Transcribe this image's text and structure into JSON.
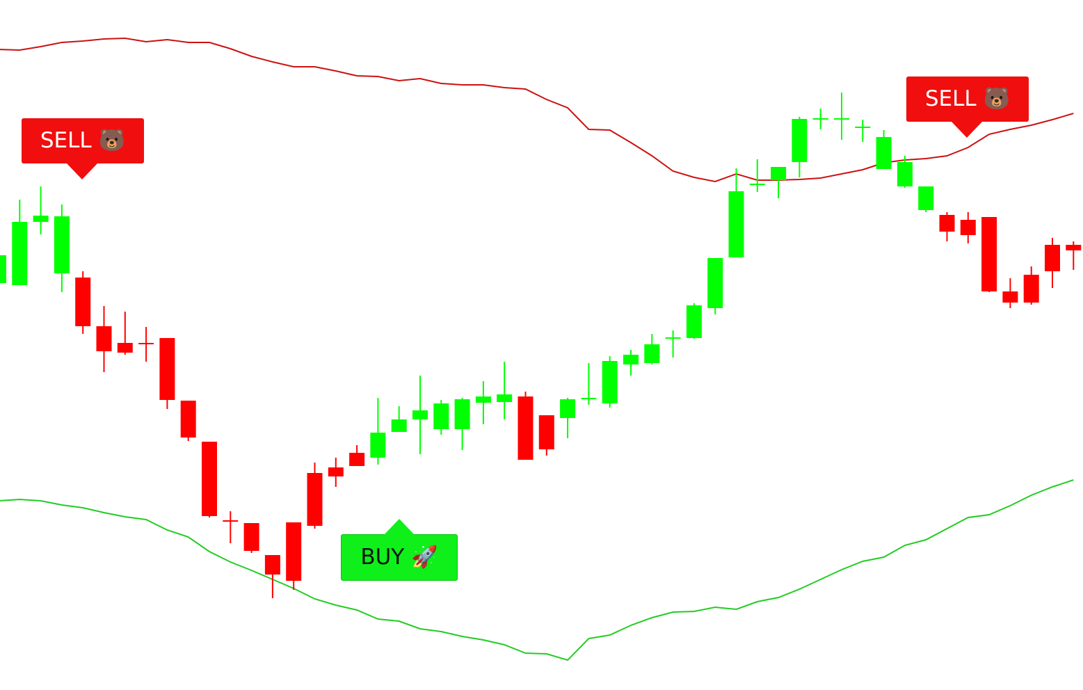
{
  "chart_data": {
    "type": "candlestick",
    "ylim": [
      0,
      992
    ],
    "up_color": "#00ff00",
    "down_color": "#ff0000",
    "open": [
      585,
      582,
      673,
      599,
      593,
      523,
      499,
      499,
      506,
      416,
      357,
      244,
      240,
      194,
      241,
      312,
      320,
      341,
      334,
      371,
      389,
      375,
      375,
      413,
      414,
      422,
      395,
      391,
      418,
      412,
      468,
      470,
      505,
      506,
      549,
      622,
      726,
      733,
      759,
      820,
      820,
      808,
      749,
      724,
      690,
      683,
      676,
      680,
      573,
      597,
      640,
      640
    ],
    "high": [
      632,
      705,
      724,
      698,
      602,
      552,
      544,
      522,
      506,
      416,
      357,
      257,
      240,
      194,
      241,
      327,
      334,
      352,
      420,
      408,
      452,
      417,
      420,
      444,
      472,
      429,
      395,
      420,
      470,
      480,
      489,
      512,
      517,
      556,
      621,
      750,
      763,
      752,
      824,
      836,
      859,
      820,
      805,
      768,
      724,
      687,
      687,
      680,
      592,
      609,
      650,
      645
    ],
    "low": [
      582,
      582,
      655,
      572,
      512,
      457,
      482,
      472,
      404,
      358,
      248,
      211,
      197,
      132,
      144,
      232,
      292,
      322,
      324,
      371,
      339,
      367,
      345,
      382,
      389,
      331,
      337,
      362,
      410,
      406,
      452,
      468,
      478,
      505,
      540,
      622,
      716,
      707,
      737,
      806,
      791,
      788,
      749,
      722,
      687,
      645,
      642,
      572,
      549,
      554,
      578,
      604
    ],
    "close": [
      625,
      673,
      682,
      681,
      523,
      487,
      485,
      497,
      417,
      363,
      250,
      242,
      200,
      166,
      157,
      236,
      307,
      322,
      370,
      389,
      402,
      412,
      418,
      422,
      425,
      331,
      346,
      418,
      420,
      473,
      482,
      497,
      507,
      553,
      621,
      717,
      728,
      752,
      821,
      822,
      822,
      810,
      795,
      759,
      724,
      659,
      654,
      573,
      557,
      557,
      602,
      632
    ],
    "series": [
      {
        "color": "#cc1111",
        "values": [
          921,
          920,
          925,
          931,
          933,
          936,
          937,
          932,
          935,
          931,
          931,
          922,
          911,
          903,
          896,
          896,
          890,
          883,
          882,
          876,
          879,
          872,
          870,
          870,
          866,
          864,
          849,
          837,
          806,
          805,
          787,
          768,
          746,
          737,
          731,
          742,
          733,
          733,
          734,
          736,
          742,
          748,
          758,
          762,
          764,
          768,
          780,
          799,
          806,
          812,
          820,
          829
        ]
      },
      {
        "color": "#22cc22",
        "values": [
          272,
          274,
          272,
          266,
          262,
          255,
          249,
          245,
          230,
          220,
          199,
          184,
          172,
          159,
          146,
          131,
          122,
          115,
          102,
          99,
          88,
          84,
          77,
          72,
          65,
          53,
          52,
          43,
          74,
          79,
          93,
          104,
          112,
          113,
          119,
          116,
          127,
          133,
          145,
          159,
          173,
          185,
          191,
          208,
          216,
          232,
          248,
          252,
          265,
          280,
          292,
          302
        ]
      }
    ],
    "annotations": [
      {
        "text": "SELL 🐻"
      },
      {
        "text": "SELL 🐻"
      },
      {
        "text": "BUY 🚀"
      }
    ]
  }
}
